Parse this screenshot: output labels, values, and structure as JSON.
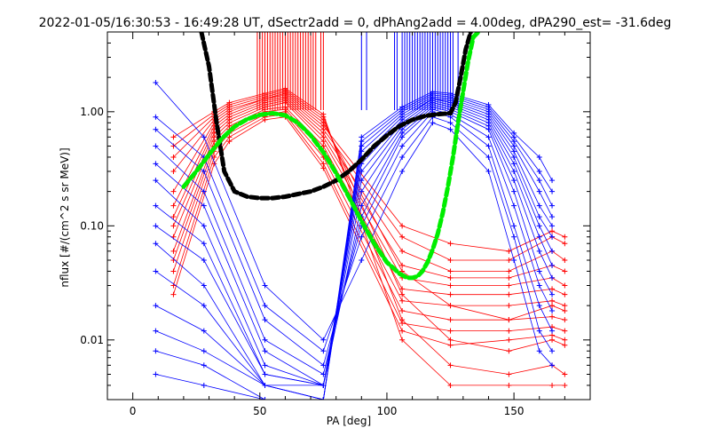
{
  "chart_data": {
    "type": "line",
    "title": "2022-01-05/16:30:53 - 16:49:28 UT, dSectr2add = 0, dPhAng2add = 4.00deg, dPA290_est= -31.6deg",
    "xlabel": "PA [deg]",
    "ylabel": "nflux [#/(cm^2 s sr MeV)]",
    "xlim": [
      -10,
      180
    ],
    "ylim": [
      0.003,
      5.0
    ],
    "yscale": "log",
    "xticks": [
      0,
      50,
      100,
      150
    ],
    "xtick_labels": [
      "0",
      "50",
      "100",
      "150"
    ],
    "yticks": [
      0.01,
      0.1,
      1.0
    ],
    "ytick_labels": [
      "0.01",
      "0.10",
      "1.00"
    ],
    "grid": false,
    "colors": {
      "red_series": "#ff0000",
      "blue_series": "#0000ff",
      "black_fit": "#000000",
      "green_fit": "#00ee00"
    },
    "marker": "plus",
    "series": [
      {
        "color": "red",
        "x": [
          16,
          32,
          38,
          52,
          60,
          75,
          106,
          125,
          148,
          165,
          170
        ],
        "curves": [
          [
            0.025,
            0.35,
            0.55,
            0.85,
            0.9,
            0.32,
            0.012,
            0.009,
            0.01,
            0.011,
            0.01
          ],
          [
            0.03,
            0.4,
            0.6,
            0.9,
            0.95,
            0.35,
            0.014,
            0.012,
            0.012,
            0.013,
            0.012
          ],
          [
            0.04,
            0.45,
            0.65,
            0.95,
            1.0,
            0.4,
            0.018,
            0.015,
            0.015,
            0.016,
            0.015
          ],
          [
            0.05,
            0.5,
            0.7,
            1.0,
            1.05,
            0.45,
            0.022,
            0.02,
            0.02,
            0.022,
            0.02
          ],
          [
            0.06,
            0.55,
            0.75,
            1.05,
            1.1,
            0.5,
            0.028,
            0.025,
            0.025,
            0.028,
            0.025
          ],
          [
            0.08,
            0.6,
            0.8,
            1.1,
            1.2,
            0.55,
            0.035,
            0.03,
            0.03,
            0.035,
            0.03
          ],
          [
            0.1,
            0.65,
            0.85,
            1.15,
            1.25,
            0.6,
            0.045,
            0.035,
            0.035,
            0.045,
            0.04
          ],
          [
            0.12,
            0.7,
            0.9,
            1.2,
            1.3,
            0.65,
            0.06,
            0.04,
            0.04,
            0.06,
            0.05
          ],
          [
            0.15,
            0.75,
            0.95,
            1.25,
            1.35,
            0.7,
            0.08,
            0.05,
            0.05,
            0.08,
            0.07
          ],
          [
            0.2,
            0.8,
            1.0,
            1.3,
            1.4,
            0.75,
            0.1,
            0.07,
            0.06,
            0.09,
            0.08
          ],
          [
            0.3,
            0.85,
            1.05,
            1.3,
            1.45,
            0.8,
            0.04,
            0.02,
            0.015,
            0.02,
            0.018
          ],
          [
            0.4,
            0.9,
            1.1,
            1.35,
            1.5,
            0.85,
            0.025,
            0.01,
            0.008,
            0.01,
            0.009
          ],
          [
            0.5,
            0.95,
            1.15,
            1.4,
            1.55,
            0.9,
            0.015,
            0.006,
            0.005,
            0.006,
            0.005
          ],
          [
            0.6,
            1.0,
            1.2,
            1.45,
            1.6,
            0.95,
            0.01,
            0.004,
            0.004,
            0.004,
            0.004
          ]
        ]
      },
      {
        "color": "blue",
        "x": [
          9,
          28,
          52,
          75,
          90,
          106,
          118,
          125,
          140,
          150,
          160,
          165
        ],
        "curves": [
          [
            1.8,
            0.6,
            0.03,
            0.01,
            0.05,
            0.3,
            0.8,
            0.7,
            0.3,
            0.05,
            0.008,
            0.006
          ],
          [
            0.9,
            0.4,
            0.02,
            0.008,
            0.08,
            0.4,
            0.9,
            0.8,
            0.4,
            0.08,
            0.012,
            0.008
          ],
          [
            0.7,
            0.3,
            0.015,
            0.006,
            0.1,
            0.5,
            1.0,
            0.9,
            0.5,
            0.1,
            0.02,
            0.012
          ],
          [
            0.5,
            0.2,
            0.01,
            0.005,
            0.12,
            0.6,
            1.05,
            0.95,
            0.6,
            0.15,
            0.03,
            0.018
          ],
          [
            0.35,
            0.15,
            0.008,
            0.004,
            0.15,
            0.65,
            1.1,
            1.0,
            0.7,
            0.2,
            0.04,
            0.025
          ],
          [
            0.25,
            0.1,
            0.006,
            0.004,
            0.2,
            0.7,
            1.15,
            1.05,
            0.75,
            0.25,
            0.06,
            0.035
          ],
          [
            0.15,
            0.07,
            0.005,
            0.004,
            0.25,
            0.75,
            1.2,
            1.1,
            0.8,
            0.3,
            0.08,
            0.045
          ],
          [
            0.1,
            0.05,
            0.005,
            0.004,
            0.3,
            0.8,
            1.25,
            1.15,
            0.85,
            0.35,
            0.1,
            0.06
          ],
          [
            0.07,
            0.03,
            0.004,
            0.004,
            0.35,
            0.85,
            1.3,
            1.2,
            0.9,
            0.4,
            0.12,
            0.08
          ],
          [
            0.04,
            0.02,
            0.004,
            0.003,
            0.4,
            0.9,
            1.3,
            1.25,
            0.95,
            0.45,
            0.15,
            0.1
          ],
          [
            0.02,
            0.012,
            0.004,
            0.003,
            0.45,
            0.95,
            1.35,
            1.3,
            1.0,
            0.5,
            0.2,
            0.12
          ],
          [
            0.012,
            0.008,
            0.004,
            0.003,
            0.5,
            1.0,
            1.4,
            1.35,
            1.05,
            0.55,
            0.25,
            0.15
          ],
          [
            0.008,
            0.006,
            0.003,
            0.003,
            0.55,
            1.05,
            1.45,
            1.4,
            1.1,
            0.6,
            0.3,
            0.2
          ],
          [
            0.005,
            0.004,
            0.003,
            0.003,
            0.6,
            1.1,
            1.5,
            1.45,
            1.15,
            0.65,
            0.4,
            0.25
          ]
        ]
      },
      {
        "color": "black",
        "style": "dashed",
        "x": [
          27,
          30,
          33,
          36,
          40,
          45,
          50,
          55,
          60,
          65,
          70,
          75,
          80,
          85,
          90,
          95,
          100,
          105,
          110,
          115,
          120,
          125,
          127,
          129,
          131,
          133
        ],
        "y": [
          5.0,
          2.5,
          0.8,
          0.3,
          0.2,
          0.18,
          0.175,
          0.175,
          0.18,
          0.19,
          0.2,
          0.22,
          0.25,
          0.3,
          0.38,
          0.5,
          0.62,
          0.75,
          0.85,
          0.92,
          0.95,
          0.97,
          1.2,
          2.0,
          3.5,
          5.0
        ]
      },
      {
        "color": "green",
        "style": "dashed",
        "x": [
          20,
          25,
          30,
          35,
          40,
          45,
          50,
          55,
          60,
          65,
          70,
          75,
          80,
          85,
          90,
          95,
          100,
          105,
          108,
          110,
          112,
          114,
          116,
          118,
          120,
          122,
          124,
          126,
          128,
          130,
          132,
          134,
          136
        ],
        "y": [
          0.22,
          0.3,
          0.42,
          0.58,
          0.74,
          0.86,
          0.94,
          0.97,
          0.93,
          0.8,
          0.62,
          0.44,
          0.29,
          0.18,
          0.11,
          0.07,
          0.048,
          0.038,
          0.035,
          0.035,
          0.036,
          0.04,
          0.048,
          0.062,
          0.085,
          0.13,
          0.22,
          0.4,
          0.8,
          1.5,
          2.8,
          4.5,
          5.0
        ]
      }
    ],
    "red_vlines_x": [
      49,
      50,
      51,
      52,
      53,
      54,
      55,
      56,
      57,
      58,
      59,
      60,
      61,
      62,
      63,
      64,
      65,
      66,
      67,
      68,
      69,
      70,
      71,
      72,
      74,
      75
    ],
    "blue_vlines_x": [
      90,
      92,
      103,
      104,
      106,
      107,
      108,
      109,
      110,
      111,
      112,
      113,
      114,
      115,
      116,
      117,
      118,
      119,
      120,
      121,
      122,
      123,
      124,
      125,
      126,
      128
    ]
  }
}
